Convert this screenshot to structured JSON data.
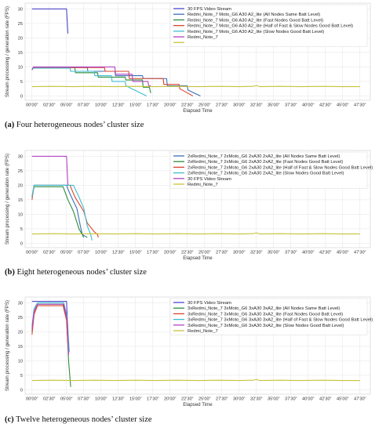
{
  "chart_data": [
    {
      "type": "line",
      "xlabel": "Elapsed Time",
      "ylabel": "Stream processing / generation rate (FPS)",
      "xlim": [
        -1,
        49
      ],
      "ylim": [
        -1.5,
        32
      ],
      "grid": true,
      "legend_position": "top-right",
      "x_ticks": [
        0,
        2.5,
        5,
        7.5,
        10,
        12.5,
        15,
        17.5,
        20,
        22.5,
        25,
        27.5,
        30,
        32.5,
        35,
        37.5,
        40,
        42.5,
        45,
        47.5
      ],
      "x_tick_labels": [
        "00'00\"",
        "02'30\"",
        "05'00\"",
        "07'30\"",
        "10'00\"",
        "12'30\"",
        "15'00\"",
        "17'30\"",
        "20'00\"",
        "22'30\"",
        "25'00\"",
        "27'30\"",
        "30'00\"",
        "32'30\"",
        "35'00\"",
        "37'30\"",
        "40'00\"",
        "42'30\"",
        "45'00\"",
        "47'30\""
      ],
      "y_ticks": [
        0,
        5,
        10,
        15,
        20,
        25,
        30
      ],
      "y_tick_labels": [
        "0",
        "5",
        "10",
        "15",
        "20",
        "25",
        "30"
      ],
      "series": [
        {
          "name": "30 FPS Video Stream",
          "color": "#4f46c8",
          "x": [
            0,
            5.0,
            5.2
          ],
          "y": [
            30,
            30,
            21.5
          ]
        },
        {
          "name": "Redmi_Note_7 Moto_G6 A30 A2_lite (All Nodes Same Batt Level)",
          "color": "#3b6fb6",
          "x": [
            0,
            0.2,
            8,
            8.1,
            12,
            12.1,
            16,
            16.1,
            19.5,
            19.6,
            22.5,
            22.6,
            24.4
          ],
          "y": [
            9,
            9.8,
            9.8,
            8.5,
            8.5,
            7,
            7,
            6,
            6,
            3.5,
            3.5,
            2,
            0
          ]
        },
        {
          "name": "Redmi_Note_7 Moto_G6 A30 A2_lite (Fast Nodes Good Batt Level)",
          "color": "#2e8b3e",
          "x": [
            0,
            0.2,
            6.2,
            6.3,
            9.5,
            9.6,
            13.5,
            13.6,
            16,
            16.1,
            17,
            17.2
          ],
          "y": [
            9,
            9.8,
            9.8,
            8,
            8,
            6.5,
            6.5,
            5.5,
            5.5,
            3,
            3,
            1
          ]
        },
        {
          "name": "Redmi_Note_7 Moto_G6 A30 A2_lite (Half of Fast & Slow Nodes Good Batt Level)",
          "color": "#d9432e",
          "x": [
            0,
            0.2,
            10.5,
            10.6,
            14,
            14.1,
            19,
            19.1,
            21.3,
            21.4,
            23.3
          ],
          "y": [
            9,
            9.8,
            9.8,
            8.5,
            8.5,
            6,
            6,
            4,
            4,
            2.5,
            0
          ]
        },
        {
          "name": "Redmi_Note_7 Moto_G6 A30 A2_lite (Slow Nodes Good Batt Level)",
          "color": "#3dbdd0",
          "x": [
            0,
            0.2,
            5.5,
            5.6,
            9,
            9.1,
            11.5,
            11.6,
            13.5,
            13.6,
            16.6
          ],
          "y": [
            9,
            9.6,
            9.6,
            8.5,
            8.5,
            7,
            7,
            5,
            5,
            3.5,
            0
          ]
        },
        {
          "name": "Redmi_Note_7",
          "color": "#b341c4",
          "x": [
            0,
            0.2,
            12,
            12.1,
            14.5,
            14.6,
            16.8,
            16.9,
            17.2
          ],
          "y": [
            9,
            10,
            10,
            7.5,
            7.5,
            5,
            5,
            3.5,
            3.5
          ]
        },
        {
          "name": "",
          "color": "#c8c23c",
          "x": [
            0,
            3,
            6,
            9,
            12,
            15,
            18,
            21,
            24,
            27,
            30,
            32,
            32.5,
            33,
            36,
            39,
            42,
            45,
            47.5
          ],
          "y": [
            3.2,
            3.3,
            3.2,
            3.3,
            3.2,
            3.3,
            3.2,
            3.3,
            3.2,
            3.3,
            3.2,
            3.3,
            3.6,
            3.2,
            3.3,
            3.2,
            3.3,
            3.2,
            3.2
          ]
        }
      ]
    },
    {
      "type": "line",
      "xlabel": "Elapsed Time",
      "ylabel": "Stream processing / generation rate (FPS)",
      "xlim": [
        -1,
        49
      ],
      "ylim": [
        -1.5,
        32
      ],
      "grid": true,
      "legend_position": "top-right",
      "x_ticks": [
        0,
        2.5,
        5,
        7.5,
        10,
        12.5,
        15,
        17.5,
        20,
        22.5,
        25,
        27.5,
        30,
        32.5,
        35,
        37.5,
        40,
        42.5,
        45,
        47.5
      ],
      "x_tick_labels": [
        "00'00\"",
        "02'30\"",
        "05'00\"",
        "07'30\"",
        "10'00\"",
        "12'30\"",
        "15'00\"",
        "17'30\"",
        "20'00\"",
        "22'30\"",
        "25'00\"",
        "27'30\"",
        "30'00\"",
        "32'30\"",
        "35'00\"",
        "37'30\"",
        "40'00\"",
        "42'30\"",
        "45'00\"",
        "47'30\""
      ],
      "y_ticks": [
        0,
        5,
        10,
        15,
        20,
        25,
        30
      ],
      "y_tick_labels": [
        "0",
        "5",
        "10",
        "15",
        "20",
        "25",
        "30"
      ],
      "series": [
        {
          "name": "2xRedmi_Note_7 2xMoto_G6 2xA30 2xA2_lite (All Nodes Same Batt Level)",
          "color": "#3b6fb6",
          "x": [
            0,
            0.3,
            5,
            5.5,
            6.5,
            7,
            7.3,
            8
          ],
          "y": [
            16,
            20,
            20,
            17,
            12,
            6,
            3,
            2
          ]
        },
        {
          "name": "2xRedmi_Note_7 2xMoto_G6 2xA30 2xA2_lite (Fast Nodes Good Batt Level)",
          "color": "#2e8b3e",
          "x": [
            0,
            0.3,
            4.5,
            5.2,
            6,
            6.8,
            7.5
          ],
          "y": [
            16,
            19.5,
            19.5,
            15,
            11,
            5,
            2
          ]
        },
        {
          "name": "2xRedmi_Note_7 2xMoto_G6 2xA30 2xA2_lite (Half of Fast & Slow Nodes Good Batt Level)",
          "color": "#d9432e",
          "x": [
            0,
            0.3,
            5.5,
            6.2,
            7.5,
            8,
            9,
            9.5,
            9.6
          ],
          "y": [
            15,
            20,
            20,
            16,
            11,
            7,
            4,
            3,
            2
          ]
        },
        {
          "name": "2xRedmi_Note_7 2xMoto_G6 2xA30 2xA2_lite (Slow Nodes Good Batt Level)",
          "color": "#3dbdd0",
          "x": [
            0,
            0.3,
            6,
            6.8,
            7.5,
            8,
            8.5,
            8.7
          ],
          "y": [
            16,
            20,
            20,
            16,
            12,
            6,
            3,
            1
          ]
        },
        {
          "name": "30 FPS Video Stream",
          "color": "#b341c4",
          "x": [
            0,
            5.0,
            5.2
          ],
          "y": [
            30,
            30,
            20
          ]
        },
        {
          "name": "Redmi_Note_7",
          "color": "#c8c23c",
          "x": [
            0,
            3,
            6,
            9,
            12,
            15,
            18,
            21,
            24,
            27,
            30,
            32,
            32.5,
            33,
            36,
            39,
            42,
            45,
            47.5
          ],
          "y": [
            3.2,
            3.3,
            3.2,
            3.3,
            3.2,
            3.3,
            3.2,
            3.3,
            3.2,
            3.3,
            3.2,
            3.3,
            3.6,
            3.2,
            3.3,
            3.2,
            3.3,
            3.2,
            3.2
          ]
        }
      ]
    },
    {
      "type": "line",
      "xlabel": "Elapsed Time",
      "ylabel": "Stream processing / generation rate (FPS)",
      "xlim": [
        -1,
        49
      ],
      "ylim": [
        -1.5,
        32
      ],
      "grid": true,
      "legend_position": "top-right",
      "x_ticks": [
        0,
        2.5,
        5,
        7.5,
        10,
        12.5,
        15,
        17.5,
        20,
        22.5,
        25,
        27.5,
        30,
        32.5,
        35,
        37.5,
        40,
        42.5,
        45,
        47.5
      ],
      "x_tick_labels": [
        "00'00\"",
        "02'30\"",
        "05'00\"",
        "07'30\"",
        "10'00\"",
        "12'30\"",
        "15'00\"",
        "17'30\"",
        "20'00\"",
        "22'30\"",
        "25'00\"",
        "27'30\"",
        "30'00\"",
        "32'30\"",
        "35'00\"",
        "37'30\"",
        "40'00\"",
        "42'30\"",
        "45'00\"",
        "47'30\""
      ],
      "y_ticks": [
        0,
        5,
        10,
        15,
        20,
        25,
        30
      ],
      "y_tick_labels": [
        "0",
        "5",
        "10",
        "15",
        "20",
        "25",
        "30"
      ],
      "series": [
        {
          "name": "30 FPS Video Stream",
          "color": "#4f46c8",
          "x": [
            0,
            5.0,
            5.2
          ],
          "y": [
            30.5,
            30.5,
            20
          ]
        },
        {
          "name": "3xRedmi_Note_7 3xMoto_G6 3xA30 3xA2_lite (All Nodes Same Batt Level)",
          "color": "#2e8b3e",
          "x": [
            0,
            0.3,
            0.8,
            4.5,
            5.0,
            5.3,
            5.6
          ],
          "y": [
            20,
            27,
            29.5,
            29.5,
            25,
            10,
            1
          ]
        },
        {
          "name": "3xRedmi_Note_7 3xMoto_G6 3xA30 3xA2_lite (Fast Nodes Good Batt Level)",
          "color": "#d9432e",
          "x": [
            0,
            0.3,
            0.8,
            4.5,
            5.0,
            5.3
          ],
          "y": [
            19,
            26,
            29,
            29,
            24,
            12
          ]
        },
        {
          "name": "3xRedmi_Note_7 3xMoto_G6 3xA30 3xA2_lite (Half of Fast & Slow Nodes Good Batt Level)",
          "color": "#3dbdd0",
          "x": [
            0,
            0.3,
            0.8,
            4.6,
            5.1,
            5.4
          ],
          "y": [
            22,
            28,
            30,
            30,
            25,
            13
          ]
        },
        {
          "name": "3xRedmi_Note_7 3xMoto_G6 3xA30 3xA2_lite (Slow Nodes Good Batt Level)",
          "color": "#b341c4",
          "x": [
            0,
            0.3,
            0.8,
            4.6,
            5.1,
            5.3
          ],
          "y": [
            21,
            27,
            29.5,
            29.5,
            24,
            12
          ]
        },
        {
          "name": "Redmi_Note_7",
          "color": "#c8c23c",
          "x": [
            0,
            3,
            6,
            9,
            12,
            15,
            18,
            21,
            24,
            27,
            30,
            32,
            32.5,
            33,
            36,
            39,
            42,
            45,
            47.5
          ],
          "y": [
            3.2,
            3.3,
            3.2,
            3.3,
            3.2,
            3.3,
            3.2,
            3.3,
            3.2,
            3.3,
            3.2,
            3.3,
            3.6,
            3.2,
            3.3,
            3.2,
            3.3,
            3.2,
            3.2
          ]
        }
      ]
    }
  ],
  "captions": [
    {
      "label": "(a)",
      "text": "Four heterogeneous nodes’ cluster size"
    },
    {
      "label": "(b)",
      "text": "Eight heterogeneous nodes’ cluster size"
    },
    {
      "label": "(c)",
      "text": "Twelve heterogeneous nodes’ cluster size"
    }
  ]
}
